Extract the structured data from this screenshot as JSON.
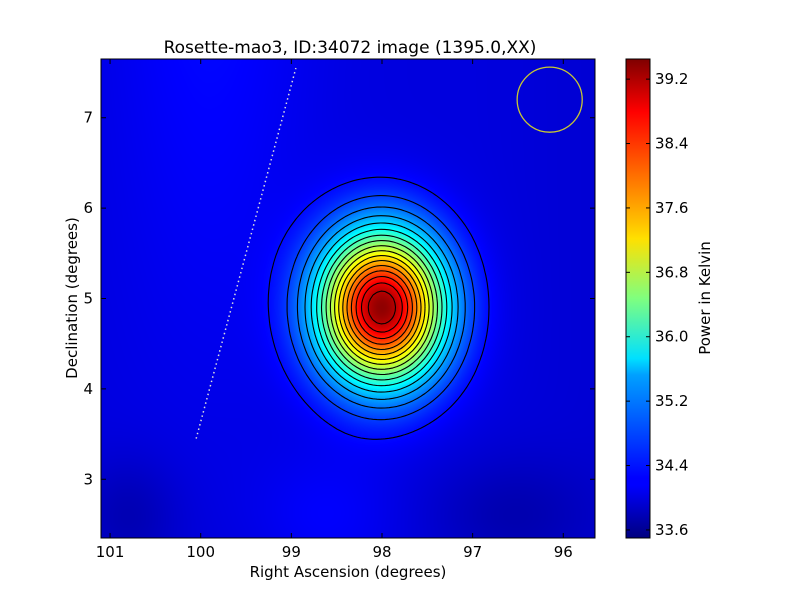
{
  "chart_data": {
    "type": "heatmap",
    "title": "Rosette-mao3, ID:34072 image (1395.0,XX)",
    "xlabel": "Right Ascension (degrees)",
    "ylabel": "Declination (degrees)",
    "xlim": [
      101.1,
      95.65
    ],
    "ylim": [
      2.35,
      7.65
    ],
    "x_ticks": [
      101,
      100,
      99,
      98,
      97,
      96
    ],
    "y_ticks": [
      3,
      4,
      5,
      6,
      7
    ],
    "x_tick_labels": [
      "101",
      "100",
      "99",
      "98",
      "97",
      "96"
    ],
    "y_tick_labels": [
      "3",
      "4",
      "5",
      "6",
      "7"
    ],
    "colorbar": {
      "label": "Power in Kelvin",
      "range": [
        33.5,
        39.45
      ],
      "ticks": [
        33.6,
        34.4,
        35.2,
        36.0,
        36.8,
        37.6,
        38.4,
        39.2
      ],
      "tick_labels": [
        "33.6",
        "34.4",
        "35.2",
        "36.0",
        "36.8",
        "37.6",
        "38.4",
        "39.2"
      ],
      "colormap": "jet"
    },
    "source": {
      "ra": 98.0,
      "dec": 4.9,
      "peak": 39.35
    },
    "background_level": 34.05,
    "contour_levels": [
      34.3,
      34.6,
      34.9,
      35.2,
      35.5,
      35.8,
      36.1,
      36.4,
      36.7,
      37.0,
      37.3,
      37.6,
      37.9,
      38.2,
      38.5,
      38.8,
      39.1
    ],
    "beam_circle": {
      "ra": 96.15,
      "dec": 7.2,
      "radius_deg": 0.36,
      "color": "#c8c832"
    },
    "dotted_line": {
      "from": [
        100.05,
        3.45
      ],
      "to": [
        98.95,
        7.55
      ],
      "color": "#dddddd"
    }
  }
}
